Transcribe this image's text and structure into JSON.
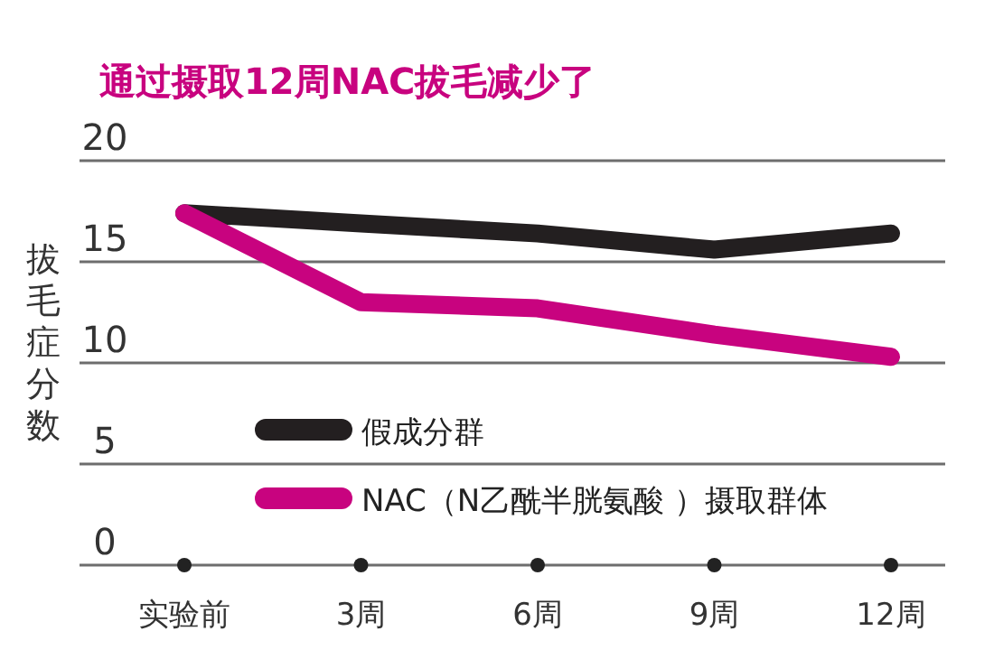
{
  "chart_data": {
    "type": "line",
    "title": "通过摄取12周NAC拔毛减少了",
    "ylabel": "拔毛症分数",
    "categories": [
      "实验前",
      "3周",
      "6周",
      "9周",
      "12周"
    ],
    "series": [
      {
        "name": "假成分群",
        "color": "#231f20",
        "values": [
          17.4,
          16.9,
          16.4,
          15.6,
          16.4
        ]
      },
      {
        "name": "NAC（N乙酰半胱氨酸 ）摄取群体",
        "color": "#c8037f",
        "values": [
          17.4,
          13.0,
          12.7,
          11.4,
          10.3
        ]
      }
    ],
    "ylim": [
      0,
      20
    ],
    "yticks": [
      0,
      5,
      10,
      15,
      20
    ],
    "grid": "y",
    "legend": "bottom left",
    "line_style": "solid"
  }
}
